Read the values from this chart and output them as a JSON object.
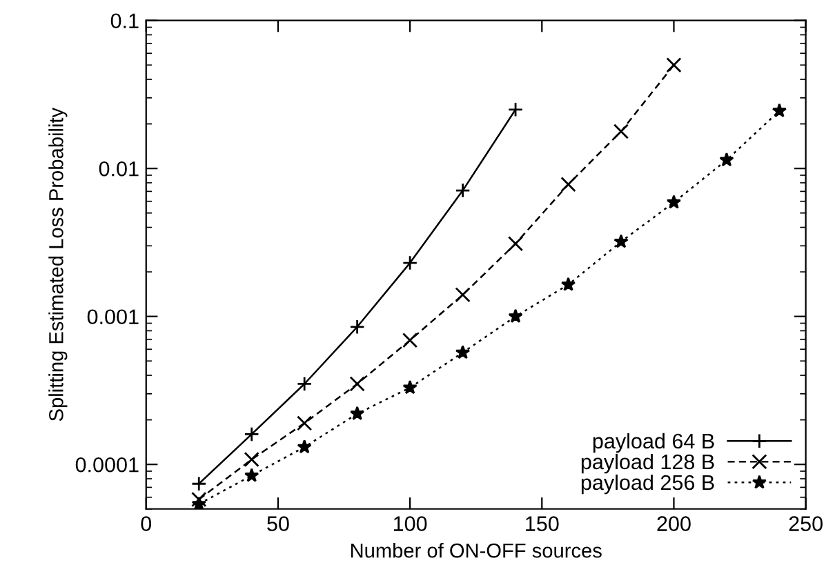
{
  "chart_data": {
    "type": "line",
    "xlabel": "Number of ON-OFF sources",
    "ylabel": "Splitting Estimated Loss Probability",
    "log": "y",
    "xlim": [
      0,
      250
    ],
    "xticks": [
      0,
      50,
      100,
      150,
      200,
      250
    ],
    "ylim": [
      5e-05,
      0.1
    ],
    "yticks": [
      0.0001,
      0.001,
      0.01,
      0.1
    ],
    "grid": false,
    "legend": "bottom right",
    "series": [
      {
        "name": "payload 64 B",
        "color": "#000000",
        "marker": "plus",
        "line_style": "solid",
        "x": [
          20,
          40,
          60,
          80,
          100,
          120,
          140
        ],
        "values": [
          7.4e-05,
          0.00016,
          0.00035,
          0.00085,
          0.0023,
          0.0071,
          0.025
        ]
      },
      {
        "name": "payload 128 B",
        "color": "#000000",
        "marker": "cross",
        "line_style": "dashed",
        "x": [
          20,
          40,
          60,
          80,
          100,
          120,
          140,
          160,
          180,
          200
        ],
        "values": [
          5.8e-05,
          0.000108,
          0.00019,
          0.00035,
          0.00069,
          0.0014,
          0.0031,
          0.0078,
          0.0178,
          0.05
        ]
      },
      {
        "name": "payload 256 B",
        "color": "#000000",
        "marker": "star",
        "line_style": "dotted",
        "x": [
          20,
          40,
          60,
          80,
          100,
          120,
          140,
          160,
          180,
          200,
          220,
          240
        ],
        "values": [
          5.4e-05,
          8.4e-05,
          0.000131,
          0.00022,
          0.00033,
          0.00057,
          0.001,
          0.00164,
          0.0032,
          0.0059,
          0.0114,
          0.0245
        ]
      }
    ]
  }
}
